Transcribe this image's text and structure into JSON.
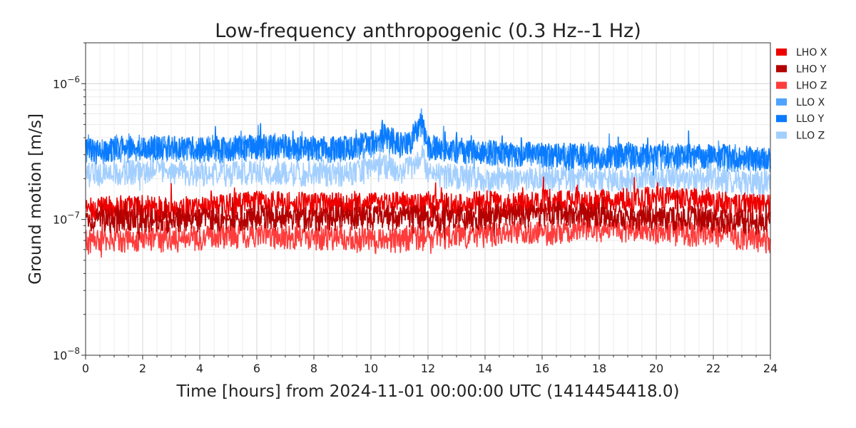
{
  "chart_data": {
    "type": "line",
    "title": "Low-frequency anthropogenic (0.3 Hz--1 Hz)",
    "xlabel": "Time [hours] from 2024-11-01 00:00:00 UTC (1414454418.0)",
    "ylabel": "Ground motion [m/s]",
    "xlim": [
      0,
      24
    ],
    "ylim": [
      1e-08,
      2e-06
    ],
    "yscale": "log",
    "grid": true,
    "legend_position": "right, outside plot",
    "x_ticks": [
      0,
      2,
      4,
      6,
      8,
      10,
      12,
      14,
      16,
      18,
      20,
      22,
      24
    ],
    "x_tick_labels": [
      "0",
      "2",
      "4",
      "6",
      "8",
      "10",
      "12",
      "14",
      "16",
      "18",
      "20",
      "22",
      "24"
    ],
    "y_ticks": [
      1e-08,
      1e-07,
      1e-06
    ],
    "y_tick_labels": [
      {
        "base": "10",
        "exp": "−8"
      },
      {
        "base": "10",
        "exp": "−7"
      },
      {
        "base": "10",
        "exp": "−6"
      }
    ],
    "x": [
      0,
      1,
      2,
      3,
      4,
      5,
      6,
      7,
      8,
      9,
      10,
      10.5,
      11,
      11.5,
      11.8,
      12,
      13,
      14,
      15,
      16,
      17,
      18,
      19,
      20,
      21,
      22,
      23,
      24
    ],
    "series": [
      {
        "name": "LHO X",
        "color": "#ee0000",
        "values": [
          1.2e-07,
          1.25e-07,
          1.25e-07,
          1.2e-07,
          1.25e-07,
          1.3e-07,
          1.35e-07,
          1.35e-07,
          1.3e-07,
          1.3e-07,
          1.3e-07,
          1.3e-07,
          1.35e-07,
          1.3e-07,
          1.3e-07,
          1.3e-07,
          1.3e-07,
          1.35e-07,
          1.3e-07,
          1.4e-07,
          1.35e-07,
          1.4e-07,
          1.4e-07,
          1.45e-07,
          1.4e-07,
          1.35e-07,
          1.3e-07,
          1.25e-07
        ]
      },
      {
        "name": "LHO Y",
        "color": "#b30000",
        "values": [
          1e-07,
          1e-07,
          1e-07,
          1e-07,
          1e-07,
          1.05e-07,
          1.05e-07,
          1.05e-07,
          1e-07,
          1.05e-07,
          1.05e-07,
          1.05e-07,
          1.05e-07,
          1.05e-07,
          1.05e-07,
          1.05e-07,
          1.05e-07,
          1.05e-07,
          1.1e-07,
          1.1e-07,
          1.1e-07,
          1.1e-07,
          1.05e-07,
          1.05e-07,
          1.05e-07,
          1e-07,
          1e-07,
          9.5e-08
        ]
      },
      {
        "name": "LHO Z",
        "color": "#ff3c3c",
        "values": [
          7e-08,
          7.2e-08,
          7.2e-08,
          7.2e-08,
          7.5e-08,
          7.5e-08,
          7.8e-08,
          7.5e-08,
          7.5e-08,
          7.5e-08,
          7e-08,
          7e-08,
          7.2e-08,
          7.5e-08,
          7.5e-08,
          7.5e-08,
          7.5e-08,
          7.8e-08,
          8e-08,
          8e-08,
          8.5e-08,
          8.5e-08,
          8.5e-08,
          8.2e-08,
          8e-08,
          8e-08,
          7.5e-08,
          7e-08
        ]
      },
      {
        "name": "LLO X",
        "color": "#4da3ff",
        "values": [
          3.2e-07,
          3.3e-07,
          3.3e-07,
          3.4e-07,
          3.3e-07,
          3.3e-07,
          3.4e-07,
          3.4e-07,
          3.3e-07,
          3.3e-07,
          3.6e-07,
          4e-07,
          3.5e-07,
          3.8e-07,
          5e-07,
          3.4e-07,
          3.2e-07,
          3.1e-07,
          3e-07,
          3e-07,
          2.9e-07,
          2.9e-07,
          2.9e-07,
          2.9e-07,
          2.9e-07,
          2.9e-07,
          2.8e-07,
          2.8e-07
        ]
      },
      {
        "name": "LLO Y",
        "color": "#0a7bff",
        "values": [
          3.3e-07,
          3.4e-07,
          3.4e-07,
          3.5e-07,
          3.4e-07,
          3.4e-07,
          3.5e-07,
          3.5e-07,
          3.4e-07,
          3.4e-07,
          3.7e-07,
          4.2e-07,
          3.6e-07,
          3.9e-07,
          5.5e-07,
          3.5e-07,
          3.3e-07,
          3.2e-07,
          3.1e-07,
          3.1e-07,
          3e-07,
          3e-07,
          3e-07,
          3e-07,
          3e-07,
          3e-07,
          2.9e-07,
          2.8e-07
        ]
      },
      {
        "name": "LLO Z",
        "color": "#a3cfff",
        "values": [
          2.2e-07,
          2.2e-07,
          2.3e-07,
          2.3e-07,
          2.2e-07,
          2.2e-07,
          2.3e-07,
          2.2e-07,
          2.2e-07,
          2.2e-07,
          2.3e-07,
          2.5e-07,
          2.2e-07,
          2.5e-07,
          3e-07,
          2.2e-07,
          2.1e-07,
          2e-07,
          2e-07,
          2e-07,
          2e-07,
          2e-07,
          2e-07,
          2e-07,
          2e-07,
          2e-07,
          1.9e-07,
          1.9e-07
        ]
      }
    ]
  }
}
